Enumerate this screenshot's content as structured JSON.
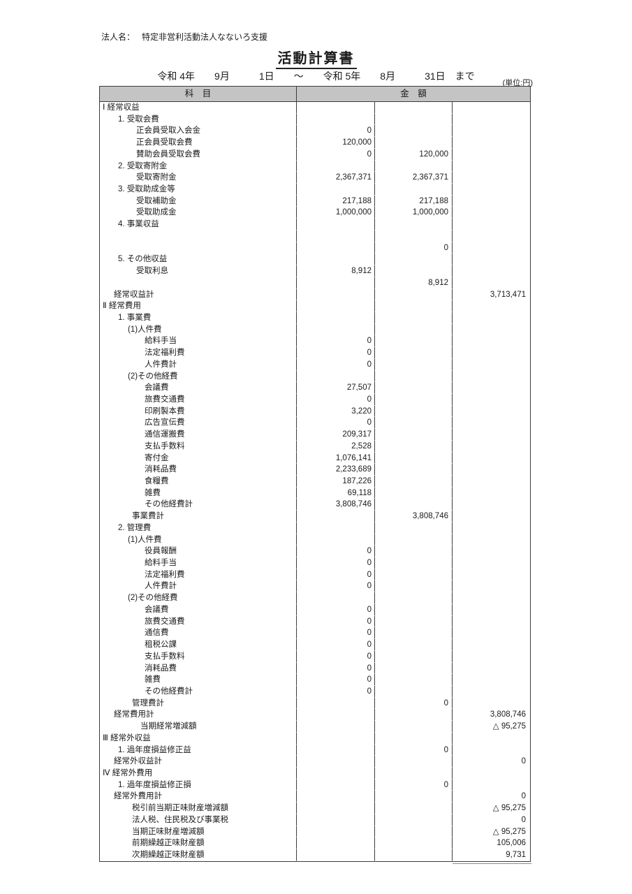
{
  "colors": {
    "header_bg": "#c4c4c4",
    "table_line": "#3b3b3b",
    "text": "#1a1a1a"
  },
  "header": {
    "corp_label": "法人名：",
    "corp_name": "特定非営利活動法人なないろ支援",
    "title": "活動計算書",
    "period": "令和 4年　　9月　　　1日　　～　　令和 5年　　8月　　　31日　まで",
    "unit": "(単位:円)"
  },
  "table": {
    "header": {
      "subject": "科　目",
      "amount": "金　額"
    },
    "rows": [
      {
        "l": "Ⅰ 経常収益",
        "i": 0
      },
      {
        "l": "1. 受取会費",
        "i": 2
      },
      {
        "l": "正会員受取入会金",
        "i": 5,
        "c1": "0"
      },
      {
        "l": "正会員受取会費",
        "i": 5,
        "c1": "120,000"
      },
      {
        "l": "賛助会員受取会費",
        "i": 5,
        "c1": "0",
        "c2": "120,000",
        "b1": 1
      },
      {
        "l": "2. 受取寄附金",
        "i": 2
      },
      {
        "l": "受取寄附金",
        "i": 5,
        "c1": "2,367,371",
        "c2": "2,367,371",
        "b1": 1
      },
      {
        "l": "3. 受取助成金等",
        "i": 2
      },
      {
        "l": "受取補助金",
        "i": 5,
        "c1": "217,188",
        "c2": "217,188",
        "b1": 1
      },
      {
        "l": "受取助成金",
        "i": 5,
        "c1": "1,000,000",
        "c2": "1,000,000",
        "b1": 1
      },
      {
        "l": "4. 事業収益",
        "i": 2
      },
      {
        "l": ""
      },
      {
        "l": "",
        "c2": "0",
        "b1": 1
      },
      {
        "l": "5. その他収益",
        "i": 2
      },
      {
        "l": "受取利息",
        "i": 5,
        "c1": "8,912"
      },
      {
        "l": "",
        "c2": "8,912",
        "b1": 1,
        "b2": 1
      },
      {
        "l": "経常収益計",
        "i": 1,
        "c3": "3,713,471"
      },
      {
        "l": "Ⅱ 経常費用",
        "i": 0
      },
      {
        "l": "1. 事業費",
        "i": 2
      },
      {
        "l": "(1)人件費",
        "i": 3
      },
      {
        "l": "給料手当",
        "i": 7,
        "c1": "0"
      },
      {
        "l": "法定福利費",
        "i": 7,
        "c1": "0",
        "b1": 1
      },
      {
        "l": "人件費計",
        "i": 7,
        "c1": "0",
        "b1": 1
      },
      {
        "l": "(2)その他経費",
        "i": 3
      },
      {
        "l": "会議費",
        "i": 7,
        "c1": "27,507"
      },
      {
        "l": "旅費交通費",
        "i": 7,
        "c1": "0"
      },
      {
        "l": "印刷製本費",
        "i": 7,
        "c1": "3,220"
      },
      {
        "l": "広告宣伝費",
        "i": 7,
        "c1": "0"
      },
      {
        "l": "通信運搬費",
        "i": 7,
        "c1": "209,317"
      },
      {
        "l": "支払手数料",
        "i": 7,
        "c1": "2,528"
      },
      {
        "l": "寄付金",
        "i": 7,
        "c1": "1,076,141"
      },
      {
        "l": "消耗品費",
        "i": 7,
        "c1": "2,233,689"
      },
      {
        "l": "食糧費",
        "i": 7,
        "c1": "187,226"
      },
      {
        "l": "雑費",
        "i": 7,
        "c1": "69,118",
        "b1": 1
      },
      {
        "l": "その他経費計",
        "i": 7,
        "c1": "3,808,746",
        "b1": 1
      },
      {
        "l": "事業費計",
        "i": 4,
        "c2": "3,808,746"
      },
      {
        "l": "2. 管理費",
        "i": 2
      },
      {
        "l": "(1)人件費",
        "i": 3
      },
      {
        "l": "役員報酬",
        "i": 7,
        "c1": "0"
      },
      {
        "l": "給料手当",
        "i": 7,
        "c1": "0"
      },
      {
        "l": "法定福利費",
        "i": 7,
        "c1": "0",
        "b1": 1
      },
      {
        "l": "人件費計",
        "i": 7,
        "c1": "0",
        "b1": 1
      },
      {
        "l": "(2)その他経費",
        "i": 3
      },
      {
        "l": "会議費",
        "i": 7,
        "c1": "0"
      },
      {
        "l": "旅費交通費",
        "i": 7,
        "c1": "0"
      },
      {
        "l": "通信費",
        "i": 7,
        "c1": "0"
      },
      {
        "l": "租税公課",
        "i": 7,
        "c1": "0"
      },
      {
        "l": "支払手数料",
        "i": 7,
        "c1": "0"
      },
      {
        "l": "消耗品費",
        "i": 7,
        "c1": "0"
      },
      {
        "l": "雑費",
        "i": 7,
        "c1": "0",
        "b1": 1
      },
      {
        "l": "その他経費計",
        "i": 7,
        "c1": "0",
        "b1": 1
      },
      {
        "l": "管理費計",
        "i": 4,
        "c2": "0",
        "b2": 1
      },
      {
        "l": "経常費用計",
        "i": 1,
        "c3": "3,808,746",
        "b3": 1
      },
      {
        "l": "当期経常増減額",
        "i": 6,
        "c3": "△ 95,275"
      },
      {
        "l": "Ⅲ 経常外収益",
        "i": 0
      },
      {
        "l": "1. 過年度損益修正益",
        "i": 2,
        "c2": "0",
        "b2": 1
      },
      {
        "l": "経常外収益計",
        "i": 1,
        "c3": "0"
      },
      {
        "l": "Ⅳ 経常外費用",
        "i": 0
      },
      {
        "l": "1. 過年度損益修正損",
        "i": 2,
        "c2": "0",
        "b2": 1,
        "b3": 1
      },
      {
        "l": "経常外費用計",
        "i": 1,
        "c3": "0",
        "b3": 1
      },
      {
        "l": "税引前当期正味財産増減額",
        "i": 4,
        "c3": "△ 95,275"
      },
      {
        "l": "法人税、住民税及び事業税",
        "i": 4,
        "c3": "0",
        "b3": 1
      },
      {
        "l": "当期正味財産増減額",
        "i": 4,
        "c3": "△ 95,275"
      },
      {
        "l": "前期繰越正味財産額",
        "i": 4,
        "c3": "105,006",
        "b3": 1
      },
      {
        "l": "次期繰越正味財産額",
        "i": 4,
        "c3": "9,731"
      }
    ]
  }
}
